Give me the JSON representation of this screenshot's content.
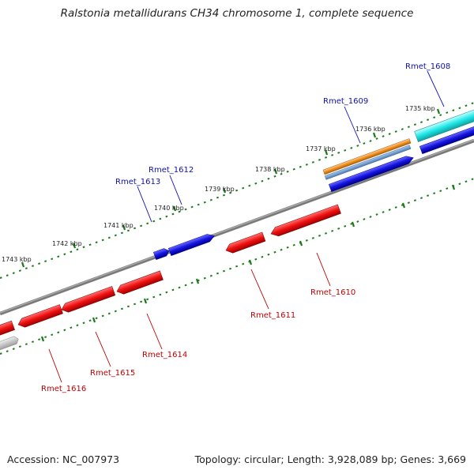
{
  "title": "Ralstonia metallidurans CH34 chromosome 1, complete sequence",
  "footer": {
    "accession": "Accession: NC_007973",
    "summary": "Topology: circular; Length: 3,928,089 bp; Genes: 3,669"
  },
  "colors": {
    "forward_gene": "#1010e0",
    "reverse_gene": "#e81010",
    "label_forward": "#1010b0",
    "label_reverse": "#c00000",
    "backbone": "#858585",
    "tick": "#1a7a1a",
    "orange_feature": "#f09020",
    "cyan_feature": "#20e8e8",
    "steelblue_feature": "#6a9ad0",
    "gray_feature": "#c8c8c8"
  },
  "scale_labels": [
    "1735 kbp",
    "1736 kbp",
    "1737 kbp",
    "1738 kbp",
    "1739 kbp",
    "1740 kbp",
    "1741 kbp",
    "1742 kbp",
    "1743 kbp"
  ],
  "gene_labels": [
    {
      "text": "Rmet_1608",
      "strand": "forward"
    },
    {
      "text": "Rmet_1609",
      "strand": "forward"
    },
    {
      "text": "Rmet_1612",
      "strand": "forward"
    },
    {
      "text": "Rmet_1613",
      "strand": "forward"
    },
    {
      "text": "Rmet_1610",
      "strand": "reverse"
    },
    {
      "text": "Rmet_1611",
      "strand": "reverse"
    },
    {
      "text": "Rmet_1614",
      "strand": "reverse"
    },
    {
      "text": "Rmet_1615",
      "strand": "reverse"
    },
    {
      "text": "Rmet_1616",
      "strand": "reverse"
    }
  ]
}
